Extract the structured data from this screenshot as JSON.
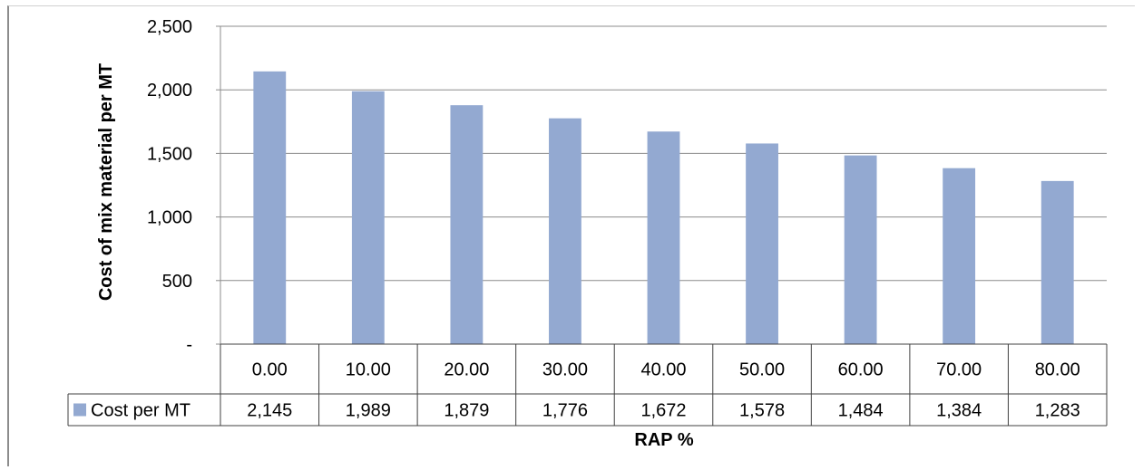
{
  "chart_data": {
    "type": "bar",
    "categories": [
      "0.00",
      "10.00",
      "20.00",
      "30.00",
      "40.00",
      "50.00",
      "60.00",
      "70.00",
      "80.00"
    ],
    "series": [
      {
        "name": "Cost per MT",
        "values": [
          2145,
          1989,
          1879,
          1776,
          1672,
          1578,
          1484,
          1384,
          1283
        ],
        "labels": [
          "2,145",
          "1,989",
          "1,879",
          "1,776",
          "1,672",
          "1,578",
          "1,484",
          "1,384",
          "1,283"
        ],
        "color": "#93a9d1"
      }
    ],
    "ylim": [
      0,
      2500
    ],
    "yticks": [
      0,
      500,
      1000,
      1500,
      2000,
      2500
    ],
    "ytick_labels": [
      "-",
      "500",
      "1,000",
      "1,500",
      "2,000",
      "2,500"
    ],
    "xlabel": "RAP %",
    "ylabel": "Cost of mix material per MT",
    "grid": true,
    "legend": "data-table"
  }
}
